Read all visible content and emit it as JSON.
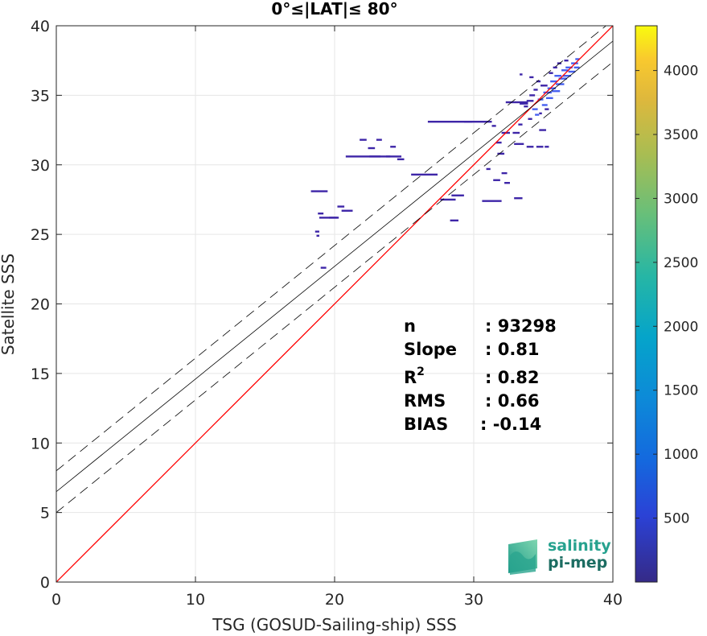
{
  "chart_data": {
    "type": "scatter",
    "title": "0°≤|LAT|≤ 80°",
    "xlabel": "TSG (GOSUD-Sailing-ship) SSS",
    "ylabel": "Satellite SSS",
    "xlim": [
      0,
      40
    ],
    "ylim": [
      0,
      40
    ],
    "xticks": [
      "0",
      "10",
      "20",
      "30",
      "40"
    ],
    "yticks": [
      "0",
      "5",
      "10",
      "15",
      "20",
      "25",
      "30",
      "35",
      "40"
    ],
    "grid": true,
    "colorbar": {
      "range": [
        0,
        4350
      ],
      "ticks": [
        "500",
        "1000",
        "1500",
        "2000",
        "2500",
        "3000",
        "3500",
        "4000"
      ],
      "colormap": "parula"
    },
    "reference_line": {
      "slope": 1,
      "intercept": 0,
      "color": "#ff0000"
    },
    "fit_line": {
      "slope": 0.81,
      "intercept": 6.5,
      "color": "#000000"
    },
    "fit_band": {
      "offset": 1.5,
      "style": "dashed"
    },
    "stats": [
      {
        "label": "n",
        "value": ": 93298"
      },
      {
        "label": "Slope",
        "value": ": 0.81"
      },
      {
        "label": "R2",
        "value": ": 0.82"
      },
      {
        "label": "RMS",
        "value": ": 0.66"
      },
      {
        "label": "BIAS",
        "value": ": -0.14"
      }
    ],
    "density_points": [
      {
        "x": 18.9,
        "y": 26.2,
        "w": 1.4
      },
      {
        "x": 19.6,
        "y": 26.2,
        "w": 0.6
      },
      {
        "x": 20.5,
        "y": 26.7,
        "w": 0.8
      },
      {
        "x": 18.3,
        "y": 28.1,
        "w": 1.2
      },
      {
        "x": 18.6,
        "y": 25.2,
        "w": 0.3
      },
      {
        "x": 18.7,
        "y": 24.9,
        "w": 0.2
      },
      {
        "x": 18.8,
        "y": 26.5,
        "w": 0.4
      },
      {
        "x": 20.2,
        "y": 27.0,
        "w": 0.5
      },
      {
        "x": 19.0,
        "y": 22.6,
        "w": 0.4
      },
      {
        "x": 20.8,
        "y": 30.6,
        "w": 2.5
      },
      {
        "x": 22.5,
        "y": 30.6,
        "w": 1.5
      },
      {
        "x": 23.7,
        "y": 30.6,
        "w": 1.1
      },
      {
        "x": 22.4,
        "y": 31.2,
        "w": 0.5
      },
      {
        "x": 21.8,
        "y": 31.8,
        "w": 0.5
      },
      {
        "x": 23.0,
        "y": 31.8,
        "w": 0.4
      },
      {
        "x": 24.0,
        "y": 31.3,
        "w": 0.4
      },
      {
        "x": 24.5,
        "y": 30.4,
        "w": 0.5
      },
      {
        "x": 25.5,
        "y": 29.3,
        "w": 1.9
      },
      {
        "x": 26.7,
        "y": 33.1,
        "w": 3.2
      },
      {
        "x": 29.3,
        "y": 33.1,
        "w": 2.0
      },
      {
        "x": 27.6,
        "y": 27.5,
        "w": 1.1
      },
      {
        "x": 28.4,
        "y": 27.8,
        "w": 0.9
      },
      {
        "x": 28.3,
        "y": 26.0,
        "w": 0.6
      },
      {
        "x": 30.6,
        "y": 27.4,
        "w": 1.4
      },
      {
        "x": 30.9,
        "y": 29.7,
        "w": 0.3
      },
      {
        "x": 31.4,
        "y": 28.9,
        "w": 0.5
      },
      {
        "x": 32.0,
        "y": 29.4,
        "w": 0.4
      },
      {
        "x": 32.2,
        "y": 28.7,
        "w": 0.4
      },
      {
        "x": 32.9,
        "y": 27.6,
        "w": 0.6
      },
      {
        "x": 32.0,
        "y": 32.3,
        "w": 0.6
      },
      {
        "x": 32.8,
        "y": 32.3,
        "w": 0.5
      },
      {
        "x": 31.7,
        "y": 30.8,
        "w": 0.4
      },
      {
        "x": 32.9,
        "y": 31.5,
        "w": 0.7
      },
      {
        "x": 33.8,
        "y": 31.3,
        "w": 0.5
      },
      {
        "x": 34.5,
        "y": 31.3,
        "w": 0.5
      },
      {
        "x": 35.1,
        "y": 31.3,
        "w": 0.3
      },
      {
        "x": 34.7,
        "y": 32.5,
        "w": 0.5
      },
      {
        "x": 33.2,
        "y": 32.9,
        "w": 0.3
      },
      {
        "x": 31.6,
        "y": 31.6,
        "w": 0.4
      },
      {
        "x": 32.3,
        "y": 34.5,
        "w": 1.6
      },
      {
        "x": 33.3,
        "y": 34.4,
        "w": 0.6
      },
      {
        "x": 33.8,
        "y": 34.6,
        "w": 0.5
      },
      {
        "x": 34.0,
        "y": 35.0,
        "w": 0.4
      },
      {
        "x": 34.2,
        "y": 34.0,
        "w": 0.4
      },
      {
        "x": 34.3,
        "y": 35.4,
        "w": 0.3
      },
      {
        "x": 34.5,
        "y": 36.0,
        "w": 0.3
      },
      {
        "x": 34.8,
        "y": 35.7,
        "w": 0.5
      },
      {
        "x": 35.0,
        "y": 35.2,
        "w": 0.6
      },
      {
        "x": 35.2,
        "y": 34.8,
        "w": 0.5
      },
      {
        "x": 35.3,
        "y": 35.5,
        "w": 0.6
      },
      {
        "x": 35.5,
        "y": 36.0,
        "w": 0.5
      },
      {
        "x": 35.6,
        "y": 35.3,
        "w": 0.6
      },
      {
        "x": 35.8,
        "y": 36.4,
        "w": 0.5
      },
      {
        "x": 35.9,
        "y": 35.8,
        "w": 0.6
      },
      {
        "x": 36.1,
        "y": 36.2,
        "w": 0.6
      },
      {
        "x": 36.3,
        "y": 36.8,
        "w": 0.5
      },
      {
        "x": 36.4,
        "y": 36.4,
        "w": 0.6
      },
      {
        "x": 36.6,
        "y": 37.0,
        "w": 0.5
      },
      {
        "x": 36.8,
        "y": 36.7,
        "w": 0.5
      },
      {
        "x": 37.0,
        "y": 37.3,
        "w": 0.5
      },
      {
        "x": 37.2,
        "y": 37.0,
        "w": 0.4
      },
      {
        "x": 37.3,
        "y": 37.6,
        "w": 0.3
      },
      {
        "x": 34.6,
        "y": 34.7,
        "w": 0.4
      },
      {
        "x": 34.9,
        "y": 34.3,
        "w": 0.4
      },
      {
        "x": 35.1,
        "y": 34.0,
        "w": 0.3
      },
      {
        "x": 34.4,
        "y": 33.6,
        "w": 0.3
      },
      {
        "x": 33.6,
        "y": 34.2,
        "w": 0.3
      },
      {
        "x": 33.9,
        "y": 33.3,
        "w": 0.3
      },
      {
        "x": 35.4,
        "y": 36.6,
        "w": 0.3
      },
      {
        "x": 35.7,
        "y": 37.0,
        "w": 0.3
      },
      {
        "x": 34.0,
        "y": 36.3,
        "w": 0.3
      },
      {
        "x": 33.3,
        "y": 36.5,
        "w": 0.2
      },
      {
        "x": 36.0,
        "y": 37.3,
        "w": 0.3
      },
      {
        "x": 36.5,
        "y": 37.5,
        "w": 0.3
      },
      {
        "x": 34.7,
        "y": 33.7,
        "w": 0.2
      },
      {
        "x": 32.0,
        "y": 30.8,
        "w": 0.2
      },
      {
        "x": 31.3,
        "y": 32.8,
        "w": 0.3
      }
    ]
  },
  "logo": {
    "line1": "salinity",
    "line2": "pi-mep"
  },
  "colors": {
    "point": "#3e26a8",
    "point_dense": "#4660f0",
    "grid": "#e6e6e6"
  }
}
